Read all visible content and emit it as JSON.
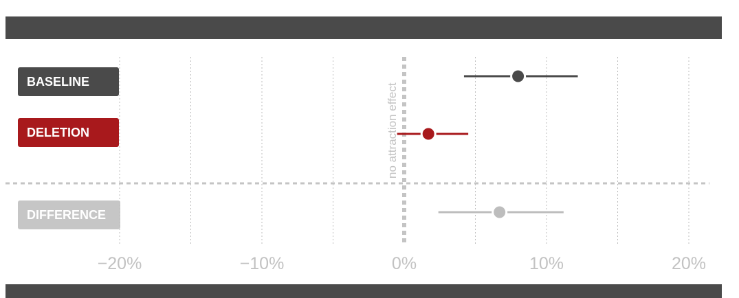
{
  "chart_data": {
    "type": "forest",
    "x_unit": "%",
    "xlim": [
      -20,
      21
    ],
    "xticks": [
      -20,
      -10,
      0,
      10,
      20
    ],
    "xtick_labels": [
      "−20%",
      "−10%",
      "0%",
      "10%",
      "20%"
    ],
    "reference_line": {
      "x": 0,
      "label": "no attraction effect"
    },
    "grid": "vertical dotted",
    "series": [
      {
        "name": "BASELINE",
        "estimate": 8.0,
        "ci": [
          4.2,
          12.2
        ],
        "color": "#4a4a4a"
      },
      {
        "name": "DELETION",
        "estimate": 1.7,
        "ci": [
          -0.5,
          4.5
        ],
        "color": "#a8191c"
      },
      {
        "name": "DIFFERENCE",
        "estimate": 6.7,
        "ci": [
          2.4,
          11.2
        ],
        "color": "#bdbdbd"
      }
    ]
  }
}
